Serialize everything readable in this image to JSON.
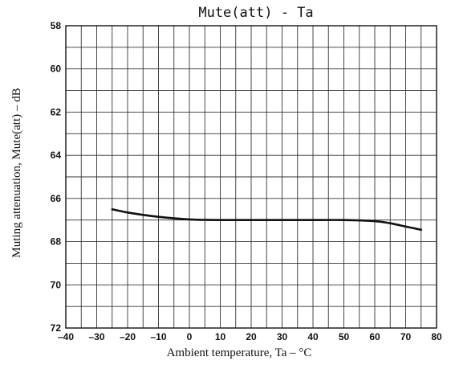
{
  "chart_data": {
    "type": "line",
    "title": "Mute(att) - Ta",
    "xlabel": "Ambient temperature, Ta  –  °C",
    "ylabel": "Muting attenuation, Mute(att)  –  dB",
    "xlim": [
      -40,
      80
    ],
    "ylim": [
      58,
      72
    ],
    "y_inverted": true,
    "grid": true,
    "x_ticks": [
      -40,
      -30,
      -20,
      -10,
      0,
      10,
      20,
      30,
      40,
      50,
      60,
      70,
      80
    ],
    "x_tick_labels": [
      "–40",
      "–30",
      "–20",
      "–10",
      "0",
      "10",
      "20",
      "30",
      "40",
      "50",
      "60",
      "70",
      "80"
    ],
    "y_ticks": [
      58,
      60,
      62,
      64,
      66,
      68,
      70,
      72
    ],
    "y_tick_labels": [
      "58",
      "60",
      "62",
      "64",
      "66",
      "68",
      "70",
      "72"
    ],
    "series": [
      {
        "x": [
          -25,
          -20,
          -10,
          0,
          10,
          20,
          30,
          40,
          50,
          60,
          65,
          70,
          75
        ],
        "y": [
          66.5,
          66.65,
          66.85,
          66.97,
          67.0,
          67.0,
          67.0,
          67.0,
          67.0,
          67.05,
          67.15,
          67.3,
          67.45
        ]
      }
    ]
  }
}
